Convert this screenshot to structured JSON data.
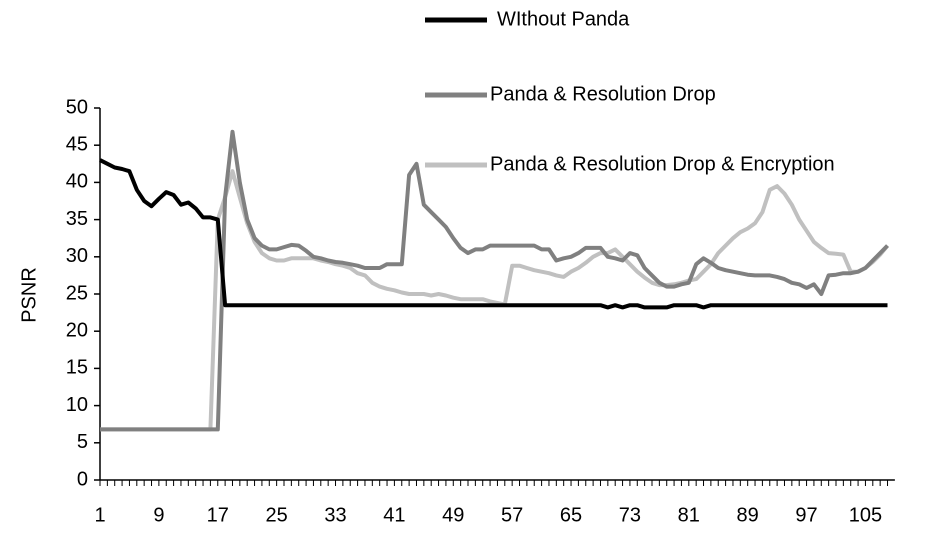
{
  "chart_data": {
    "type": "line",
    "ylabel": "PSNR",
    "categories": [
      1,
      null,
      null,
      null,
      null,
      null,
      null,
      null,
      9,
      null,
      null,
      null,
      null,
      null,
      null,
      null,
      17,
      null,
      null,
      null,
      null,
      null,
      null,
      null,
      25,
      null,
      null,
      null,
      null,
      null,
      null,
      null,
      33,
      null,
      null,
      null,
      null,
      null,
      null,
      null,
      41,
      null,
      null,
      null,
      null,
      null,
      null,
      null,
      49,
      null,
      null,
      null,
      null,
      null,
      null,
      null,
      57,
      null,
      null,
      null,
      null,
      null,
      null,
      null,
      65,
      null,
      null,
      null,
      null,
      null,
      null,
      null,
      73,
      null,
      null,
      null,
      null,
      null,
      null,
      null,
      81,
      null,
      null,
      null,
      null,
      null,
      null,
      null,
      89,
      null,
      null,
      null,
      null,
      null,
      null,
      null,
      97,
      null,
      null,
      null,
      null,
      null,
      null,
      null,
      105,
      null,
      null,
      null
    ],
    "ylim": [
      0,
      50
    ],
    "yticks": [
      0,
      5,
      10,
      15,
      20,
      25,
      30,
      35,
      40,
      45,
      50
    ],
    "series": [
      {
        "name": "WIthout Panda",
        "color": "#000000",
        "values": [
          43,
          42.5,
          42,
          41.8,
          41.5,
          39,
          37.5,
          36.8,
          37.8,
          38.7,
          38.3,
          37,
          37.3,
          36.5,
          35.3,
          35.3,
          35,
          23.5,
          23.5,
          23.5,
          23.5,
          23.5,
          23.5,
          23.5,
          23.5,
          23.5,
          23.5,
          23.5,
          23.5,
          23.5,
          23.5,
          23.5,
          23.5,
          23.5,
          23.5,
          23.5,
          23.5,
          23.5,
          23.5,
          23.5,
          23.5,
          23.5,
          23.5,
          23.5,
          23.5,
          23.5,
          23.5,
          23.5,
          23.5,
          23.5,
          23.5,
          23.5,
          23.5,
          23.5,
          23.5,
          23.5,
          23.5,
          23.5,
          23.5,
          23.5,
          23.5,
          23.5,
          23.5,
          23.5,
          23.5,
          23.5,
          23.5,
          23.5,
          23.5,
          23.2,
          23.5,
          23.2,
          23.5,
          23.5,
          23.2,
          23.2,
          23.2,
          23.2,
          23.5,
          23.5,
          23.5,
          23.5,
          23.2,
          23.5,
          23.5,
          23.5,
          23.5,
          23.5,
          23.5,
          23.5,
          23.5,
          23.5,
          23.5,
          23.5,
          23.5,
          23.5,
          23.5,
          23.5,
          23.5,
          23.5,
          23.5,
          23.5,
          23.5,
          23.5,
          23.5,
          23.5,
          23.5,
          23.5
        ]
      },
      {
        "name": "Panda & Resolution Drop",
        "color": "#808080",
        "values": [
          6.8,
          6.8,
          6.8,
          6.8,
          6.8,
          6.8,
          6.8,
          6.8,
          6.8,
          6.8,
          6.8,
          6.8,
          6.8,
          6.8,
          6.8,
          6.8,
          6.8,
          38,
          46.8,
          40,
          35,
          32.5,
          31.5,
          31,
          31,
          31.3,
          31.6,
          31.5,
          30.8,
          30,
          29.8,
          29.5,
          29.3,
          29.2,
          29,
          28.8,
          28.5,
          28.5,
          28.5,
          29,
          29,
          29,
          41,
          42.5,
          37,
          36,
          35,
          34,
          32.5,
          31.2,
          30.5,
          31,
          31,
          31.5,
          31.5,
          31.5,
          31.5,
          31.5,
          31.5,
          31.5,
          31,
          31,
          29.5,
          29.8,
          30,
          30.5,
          31.2,
          31.2,
          31.2,
          30,
          29.8,
          29.5,
          30.5,
          30.2,
          28.5,
          27.5,
          26.5,
          26,
          26,
          26.3,
          26.5,
          29,
          29.8,
          29.2,
          28.5,
          28.2,
          28,
          27.8,
          27.6,
          27.5,
          27.5,
          27.5,
          27.3,
          27,
          26.5,
          26.3,
          25.8,
          26.3,
          25,
          27.5,
          27.6,
          27.8,
          27.8,
          28,
          28.5,
          29.5,
          30.5,
          31.5
        ]
      },
      {
        "name": "Panda & Resolution Drop & Encryption",
        "color": "#c0c0c0",
        "values": [
          6.8,
          6.8,
          6.8,
          6.8,
          6.8,
          6.8,
          6.8,
          6.8,
          6.8,
          6.8,
          6.8,
          6.8,
          6.8,
          6.8,
          6.8,
          6.8,
          35,
          38,
          41.5,
          38,
          34.5,
          32,
          30.5,
          29.8,
          29.5,
          29.5,
          29.8,
          29.8,
          29.8,
          29.8,
          29.5,
          29.3,
          29,
          28.8,
          28.5,
          27.8,
          27.5,
          26.5,
          26,
          25.7,
          25.5,
          25.2,
          25,
          25,
          25,
          24.8,
          25,
          24.8,
          24.5,
          24.3,
          24.3,
          24.3,
          24.3,
          24,
          23.8,
          23.6,
          28.8,
          28.8,
          28.5,
          28.2,
          28,
          27.8,
          27.5,
          27.3,
          28,
          28.5,
          29.2,
          30,
          30.5,
          30.5,
          31,
          30,
          29,
          28,
          27.2,
          26.5,
          26.2,
          26.2,
          26.3,
          26.5,
          26.8,
          27,
          28,
          29,
          30.5,
          31.5,
          32.5,
          33.3,
          33.8,
          34.5,
          36,
          39,
          39.5,
          38.5,
          37,
          35,
          33.5,
          32,
          31.2,
          30.5,
          30.4,
          30.3,
          28,
          28,
          28.5,
          29.3,
          30.3,
          31.5
        ]
      }
    ]
  }
}
